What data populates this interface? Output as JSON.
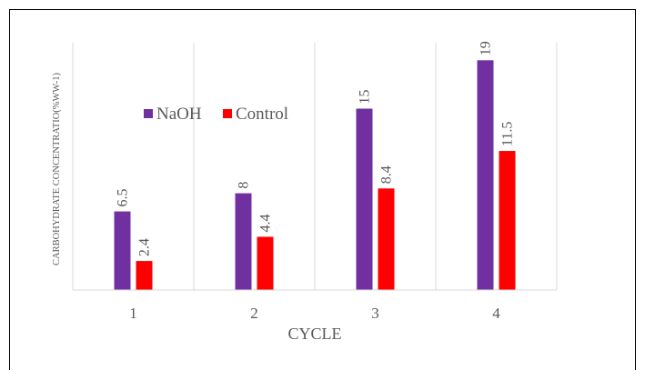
{
  "chart_data": {
    "type": "bar",
    "title": "",
    "xlabel": "CYCLE",
    "ylabel": "CARBOHYDRATE CONCENTRATIO(%WW-1)",
    "categories": [
      "1",
      "2",
      "3",
      "4"
    ],
    "series": [
      {
        "name": "NaOH",
        "values": [
          6.5,
          8,
          15,
          19
        ],
        "labels": [
          "6.5",
          "8",
          "15",
          "19"
        ],
        "color": "#7030a0"
      },
      {
        "name": "Control",
        "values": [
          2.4,
          4.4,
          8.4,
          11.5
        ],
        "labels": [
          "2.4",
          "4.4",
          "8.4",
          "11.5"
        ],
        "color": "#ff0000"
      }
    ],
    "ylim": [
      0,
      20
    ],
    "grid": "vertical",
    "legend": "top-left",
    "gridline_color": "#d9d9d9",
    "label_color": "#595959"
  }
}
